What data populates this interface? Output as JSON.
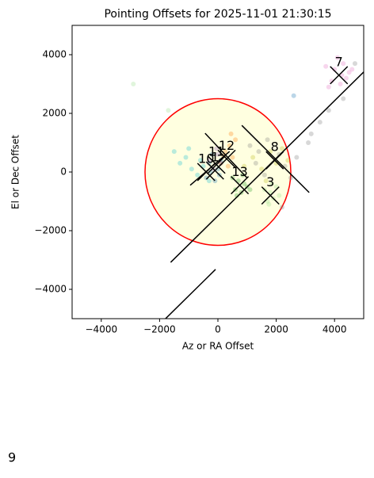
{
  "chart_data": {
    "type": "scatter",
    "title": "Pointing Offsets for 2025-11-01 21:30:15",
    "xlabel": "Az or RA Offset",
    "ylabel": "El or Dec Offset",
    "xlim": [
      -5000,
      5000
    ],
    "ylim": [
      -5000,
      5000
    ],
    "xticks": [
      {
        "value": -4000,
        "label": "−4000"
      },
      {
        "value": -2000,
        "label": "−2000"
      },
      0,
      2000,
      4000
    ],
    "yticks": [
      {
        "value": -4000,
        "label": "−4000"
      },
      {
        "value": -2000,
        "label": "−2000"
      },
      0,
      2000,
      4000
    ],
    "point_alpha": 0.3,
    "circle": {
      "x": 0,
      "y": 0,
      "r": 2500,
      "color": "red",
      "fill": "lightyellow"
    },
    "lines": [
      {
        "color": "black",
        "x": [
          -1620,
          5050
        ],
        "y": [
          -3080,
          3460
        ]
      },
      {
        "color": "black",
        "x": [
          -2000,
          -80
        ],
        "y": [
          -5200,
          -3320
        ]
      },
      {
        "color": "black",
        "x": [
          820,
          3130
        ],
        "y": [
          1590,
          -700
        ]
      },
      {
        "color": "black",
        "x": [
          -440,
          1000
        ],
        "y": [
          1320,
          -200
        ]
      },
      {
        "color": "black",
        "x": [
          -950,
          400
        ],
        "y": [
          -450,
          700
        ]
      }
    ],
    "series": [
      {
        "color": "#7f7f7f",
        "x": [
          1100,
          1400,
          1700,
          2100,
          2300,
          2500,
          2700,
          3200,
          3500,
          3800,
          4300,
          2200,
          1300,
          1600,
          3100,
          4700
        ],
        "y": [
          900,
          700,
          1100,
          600,
          200,
          -200,
          500,
          1300,
          1700,
          2100,
          2500,
          -1200,
          300,
          -100,
          1000,
          3700
        ]
      },
      {
        "name": "7",
        "color": "#e377c2",
        "center": [
          4150,
          3300
        ],
        "x": [
          3700,
          3900,
          4000,
          4200,
          4300,
          4400,
          4500,
          3800,
          4100,
          4600,
          4250
        ],
        "y": [
          3600,
          3100,
          3500,
          3000,
          3700,
          3200,
          3400,
          2900,
          3900,
          3500,
          3300
        ]
      },
      {
        "name": "12",
        "color": "#ff7f0e",
        "center": [
          300,
          450
        ],
        "x": [
          100,
          250,
          400,
          500,
          600,
          350,
          200,
          450
        ],
        "y": [
          300,
          700,
          900,
          500,
          1100,
          200,
          550,
          1300
        ]
      },
      {
        "name": "8",
        "color": "#bcbd22",
        "center": [
          1950,
          400
        ],
        "x": [
          1200,
          1500,
          1800,
          2000,
          2200,
          2400,
          1650,
          900
        ],
        "y": [
          500,
          100,
          700,
          300,
          800,
          400,
          -300,
          200
        ]
      },
      {
        "name": "10",
        "color": "#17becf",
        "center": [
          -400,
          0
        ],
        "x": [
          -1500,
          -1300,
          -1100,
          -900,
          -700,
          -500,
          -300,
          -1000,
          -600
        ],
        "y": [
          700,
          300,
          500,
          100,
          -100,
          200,
          -300,
          800,
          400
        ]
      },
      {
        "name": "1",
        "color": "#1f77b4",
        "center": [
          -100,
          50
        ],
        "x": [
          -400,
          -300,
          -200,
          -100,
          0,
          100,
          -250,
          50,
          2600
        ],
        "y": [
          -200,
          300,
          600,
          -300,
          100,
          400,
          0,
          -100,
          2600
        ]
      },
      {
        "name": "11",
        "color": "#9467bd",
        "center": [
          -50,
          250
        ],
        "x": [
          -300,
          -150,
          0,
          100,
          -50
        ],
        "y": [
          400,
          100,
          600,
          300,
          800
        ]
      },
      {
        "name": "13",
        "color": "#2ca02c",
        "center": [
          750,
          -450
        ],
        "x": [
          500,
          600,
          700,
          800,
          900,
          1000,
          650,
          850,
          1100
        ],
        "y": [
          -200,
          -600,
          -300,
          -700,
          -400,
          -500,
          -800,
          -100,
          -600
        ]
      },
      {
        "name": "3",
        "color": "#98df8a",
        "center": [
          1800,
          -800
        ],
        "x": [
          1600,
          1700,
          1800,
          1900,
          2000,
          1750,
          1850,
          2100,
          -2900,
          -1700
        ],
        "y": [
          -600,
          -1000,
          -700,
          -900,
          -500,
          -1100,
          -400,
          -800,
          3000,
          2100
        ]
      }
    ]
  },
  "footer": "9"
}
